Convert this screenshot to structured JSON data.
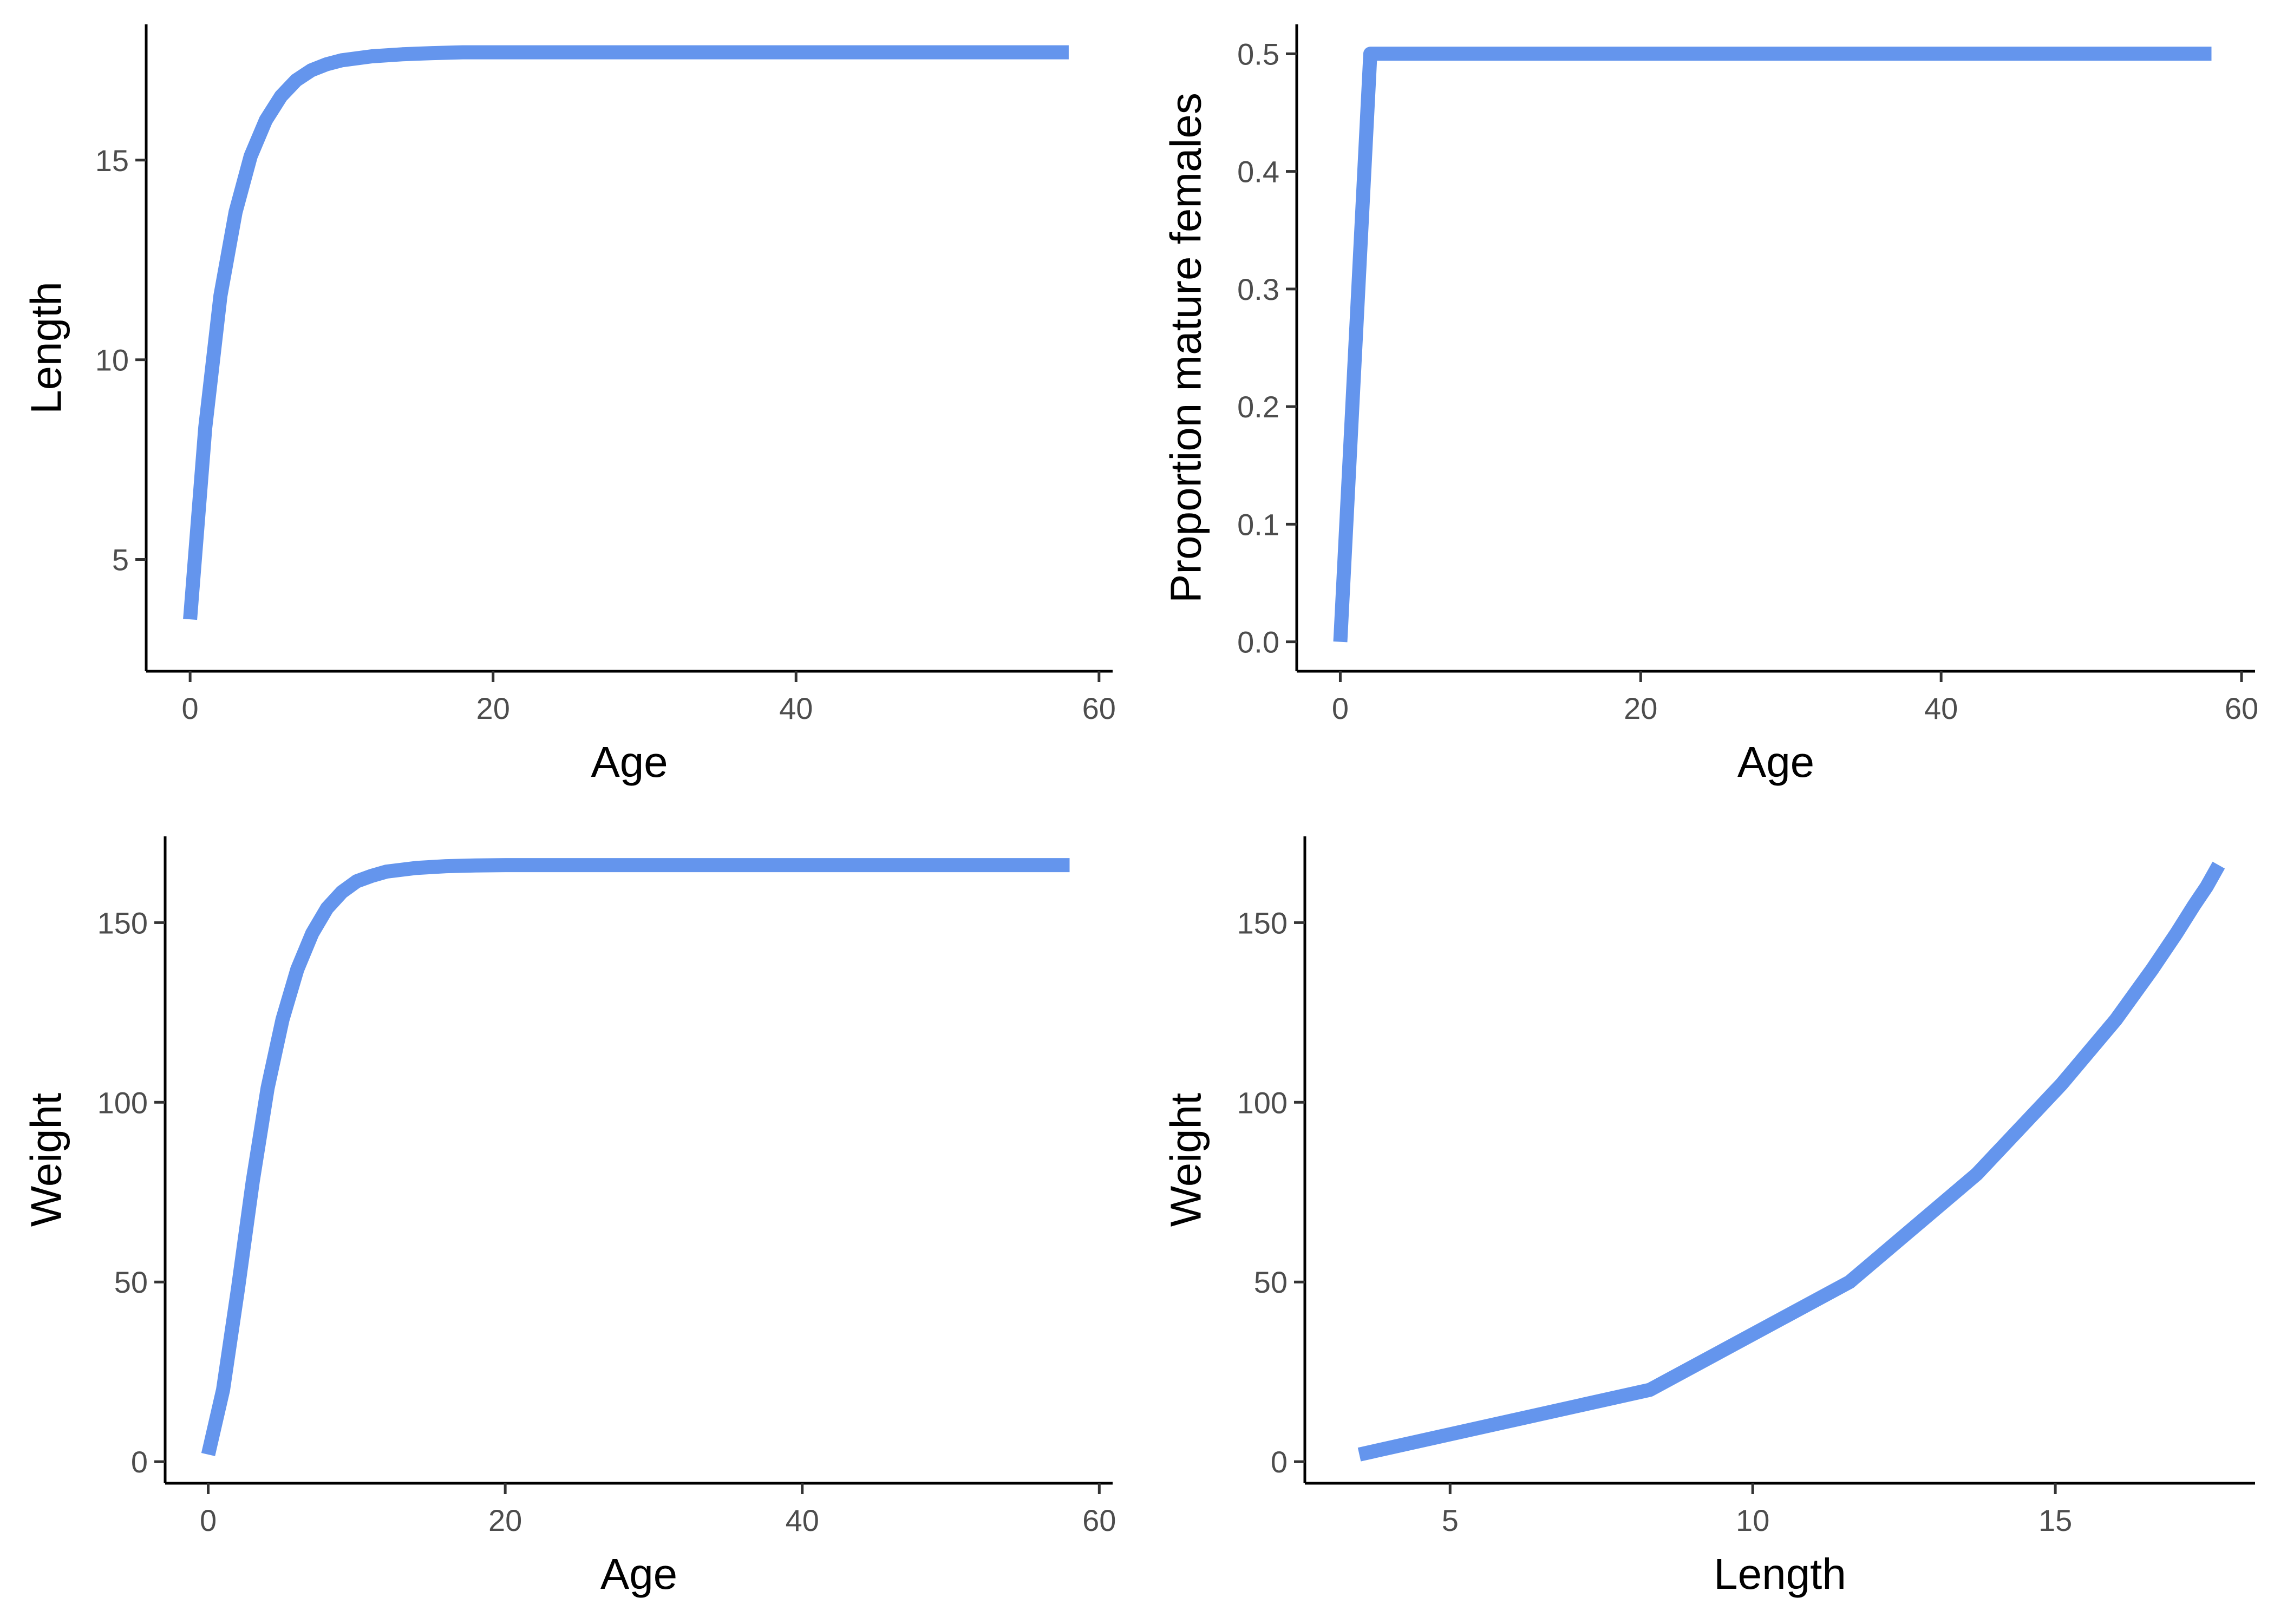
{
  "figure": {
    "line_color": "#6495ED"
  },
  "chart_data": [
    {
      "id": "length-age",
      "type": "line",
      "title": "",
      "xlabel": "Age",
      "ylabel": "Length",
      "xlim": [
        -2.9,
        60.9
      ],
      "ylim": [
        2.2,
        18.4
      ],
      "xticks": [
        0,
        20,
        40,
        60
      ],
      "yticks": [
        5,
        10,
        15
      ],
      "x": [
        0,
        1,
        2,
        3,
        4,
        5,
        6,
        7,
        8,
        9,
        10,
        12,
        14,
        16,
        18,
        20,
        25,
        30,
        40,
        50,
        58
      ],
      "series": [
        {
          "name": "Length",
          "values": [
            3.5,
            8.3,
            11.6,
            13.7,
            15.1,
            16.0,
            16.6,
            17.0,
            17.25,
            17.4,
            17.5,
            17.6,
            17.65,
            17.68,
            17.7,
            17.7,
            17.7,
            17.7,
            17.7,
            17.7,
            17.7
          ]
        }
      ]
    },
    {
      "id": "maturity-age",
      "type": "line",
      "title": "",
      "xlabel": "Age",
      "ylabel": "Proportion mature females",
      "xlim": [
        -2.9,
        60.9
      ],
      "ylim": [
        -0.025,
        0.525
      ],
      "xticks": [
        0,
        20,
        40,
        60
      ],
      "yticks": [
        0.0,
        0.1,
        0.2,
        0.3,
        0.4,
        0.5
      ],
      "ytick_labels": [
        "0.0",
        "0.1",
        "0.2",
        "0.3",
        "0.4",
        "0.5"
      ],
      "x": [
        0,
        1,
        2,
        58
      ],
      "series": [
        {
          "name": "Proportion mature females",
          "values": [
            0.0,
            0.25,
            0.5,
            0.5
          ]
        }
      ]
    },
    {
      "id": "weight-age",
      "type": "line",
      "title": "",
      "xlabel": "Age",
      "ylabel": "Weight",
      "xlim": [
        -2.9,
        60.9
      ],
      "ylim": [
        -6,
        174
      ],
      "xticks": [
        0,
        20,
        40,
        60
      ],
      "yticks": [
        0,
        50,
        100,
        150
      ],
      "x": [
        0,
        1,
        2,
        3,
        4,
        5,
        6,
        7,
        8,
        9,
        10,
        11,
        12,
        14,
        16,
        18,
        20,
        25,
        30,
        40,
        50,
        58
      ],
      "series": [
        {
          "name": "Weight",
          "values": [
            2,
            20,
            48,
            78,
            104,
            123,
            137,
            147,
            154,
            158.5,
            161.5,
            163,
            164.2,
            165.2,
            165.7,
            165.9,
            166,
            166,
            166,
            166,
            166,
            166
          ]
        }
      ]
    },
    {
      "id": "weight-length",
      "type": "line",
      "title": "",
      "xlabel": "Length",
      "ylabel": "Weight",
      "xlim": [
        2.6,
        18.3
      ],
      "ylim": [
        -6,
        174
      ],
      "xticks": [
        5,
        10,
        15
      ],
      "yticks": [
        0,
        50,
        100,
        150
      ],
      "x": [
        3.5,
        8.3,
        11.6,
        13.7,
        15.1,
        16.0,
        16.6,
        17.0,
        17.3,
        17.5,
        17.7
      ],
      "series": [
        {
          "name": "Weight",
          "values": [
            2,
            20,
            50,
            80,
            105,
            123,
            137,
            147,
            155,
            160,
            166
          ]
        }
      ]
    }
  ]
}
